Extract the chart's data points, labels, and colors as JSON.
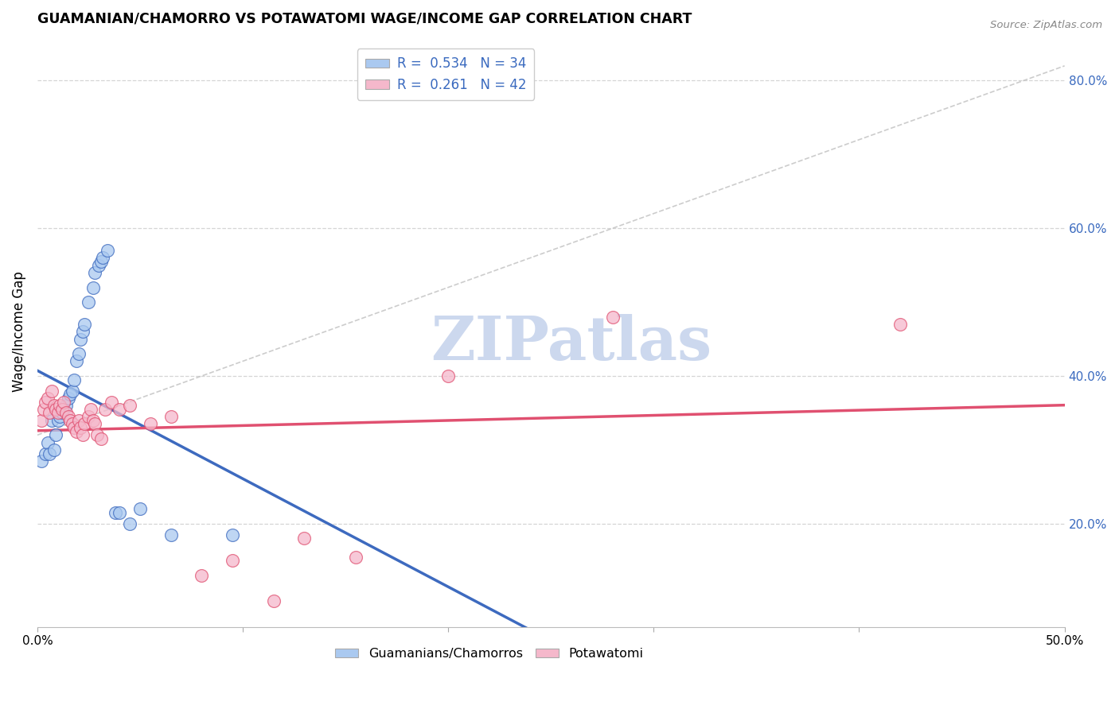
{
  "title": "GUAMANIAN/CHAMORRO VS POTAWATOMI WAGE/INCOME GAP CORRELATION CHART",
  "source": "Source: ZipAtlas.com",
  "ylabel": "Wage/Income Gap",
  "xlim": [
    0.0,
    0.5
  ],
  "ylim": [
    0.06,
    0.86
  ],
  "yticks_right": [
    0.2,
    0.4,
    0.6,
    0.8
  ],
  "ytick_labels_right": [
    "20.0%",
    "40.0%",
    "60.0%",
    "80.0%"
  ],
  "legend_r1": "R = 0.534",
  "legend_n1": "N = 34",
  "legend_r2": "R = 0.261",
  "legend_n2": "N = 42",
  "color_blue": "#aac9f0",
  "color_pink": "#f5b8cb",
  "line_blue": "#3d6abf",
  "line_pink": "#e05070",
  "line_gray": "#c0c0c0",
  "scatter_blue_x": [
    0.002,
    0.004,
    0.005,
    0.006,
    0.007,
    0.008,
    0.009,
    0.01,
    0.011,
    0.012,
    0.013,
    0.014,
    0.015,
    0.016,
    0.017,
    0.018,
    0.019,
    0.02,
    0.021,
    0.022,
    0.023,
    0.025,
    0.027,
    0.028,
    0.03,
    0.031,
    0.032,
    0.034,
    0.038,
    0.04,
    0.045,
    0.05,
    0.065,
    0.095
  ],
  "scatter_blue_y": [
    0.285,
    0.295,
    0.31,
    0.295,
    0.34,
    0.3,
    0.32,
    0.34,
    0.345,
    0.35,
    0.355,
    0.36,
    0.37,
    0.375,
    0.38,
    0.395,
    0.42,
    0.43,
    0.45,
    0.46,
    0.47,
    0.5,
    0.52,
    0.54,
    0.55,
    0.555,
    0.56,
    0.57,
    0.215,
    0.215,
    0.2,
    0.22,
    0.185,
    0.185
  ],
  "scatter_pink_x": [
    0.002,
    0.003,
    0.004,
    0.005,
    0.006,
    0.007,
    0.008,
    0.009,
    0.01,
    0.011,
    0.012,
    0.013,
    0.014,
    0.015,
    0.016,
    0.017,
    0.018,
    0.019,
    0.02,
    0.021,
    0.022,
    0.023,
    0.025,
    0.026,
    0.027,
    0.028,
    0.029,
    0.031,
    0.033,
    0.036,
    0.04,
    0.045,
    0.055,
    0.065,
    0.08,
    0.095,
    0.115,
    0.13,
    0.155,
    0.2,
    0.28,
    0.42
  ],
  "scatter_pink_y": [
    0.34,
    0.355,
    0.365,
    0.37,
    0.35,
    0.38,
    0.36,
    0.355,
    0.35,
    0.36,
    0.355,
    0.365,
    0.35,
    0.345,
    0.34,
    0.335,
    0.33,
    0.325,
    0.34,
    0.33,
    0.32,
    0.335,
    0.345,
    0.355,
    0.34,
    0.335,
    0.32,
    0.315,
    0.355,
    0.365,
    0.355,
    0.36,
    0.335,
    0.345,
    0.13,
    0.15,
    0.095,
    0.18,
    0.155,
    0.4,
    0.48,
    0.47
  ],
  "watermark": "ZIPatlas",
  "watermark_color": "#ccd8ee",
  "background_color": "#ffffff",
  "grid_color": "#d5d5d5"
}
